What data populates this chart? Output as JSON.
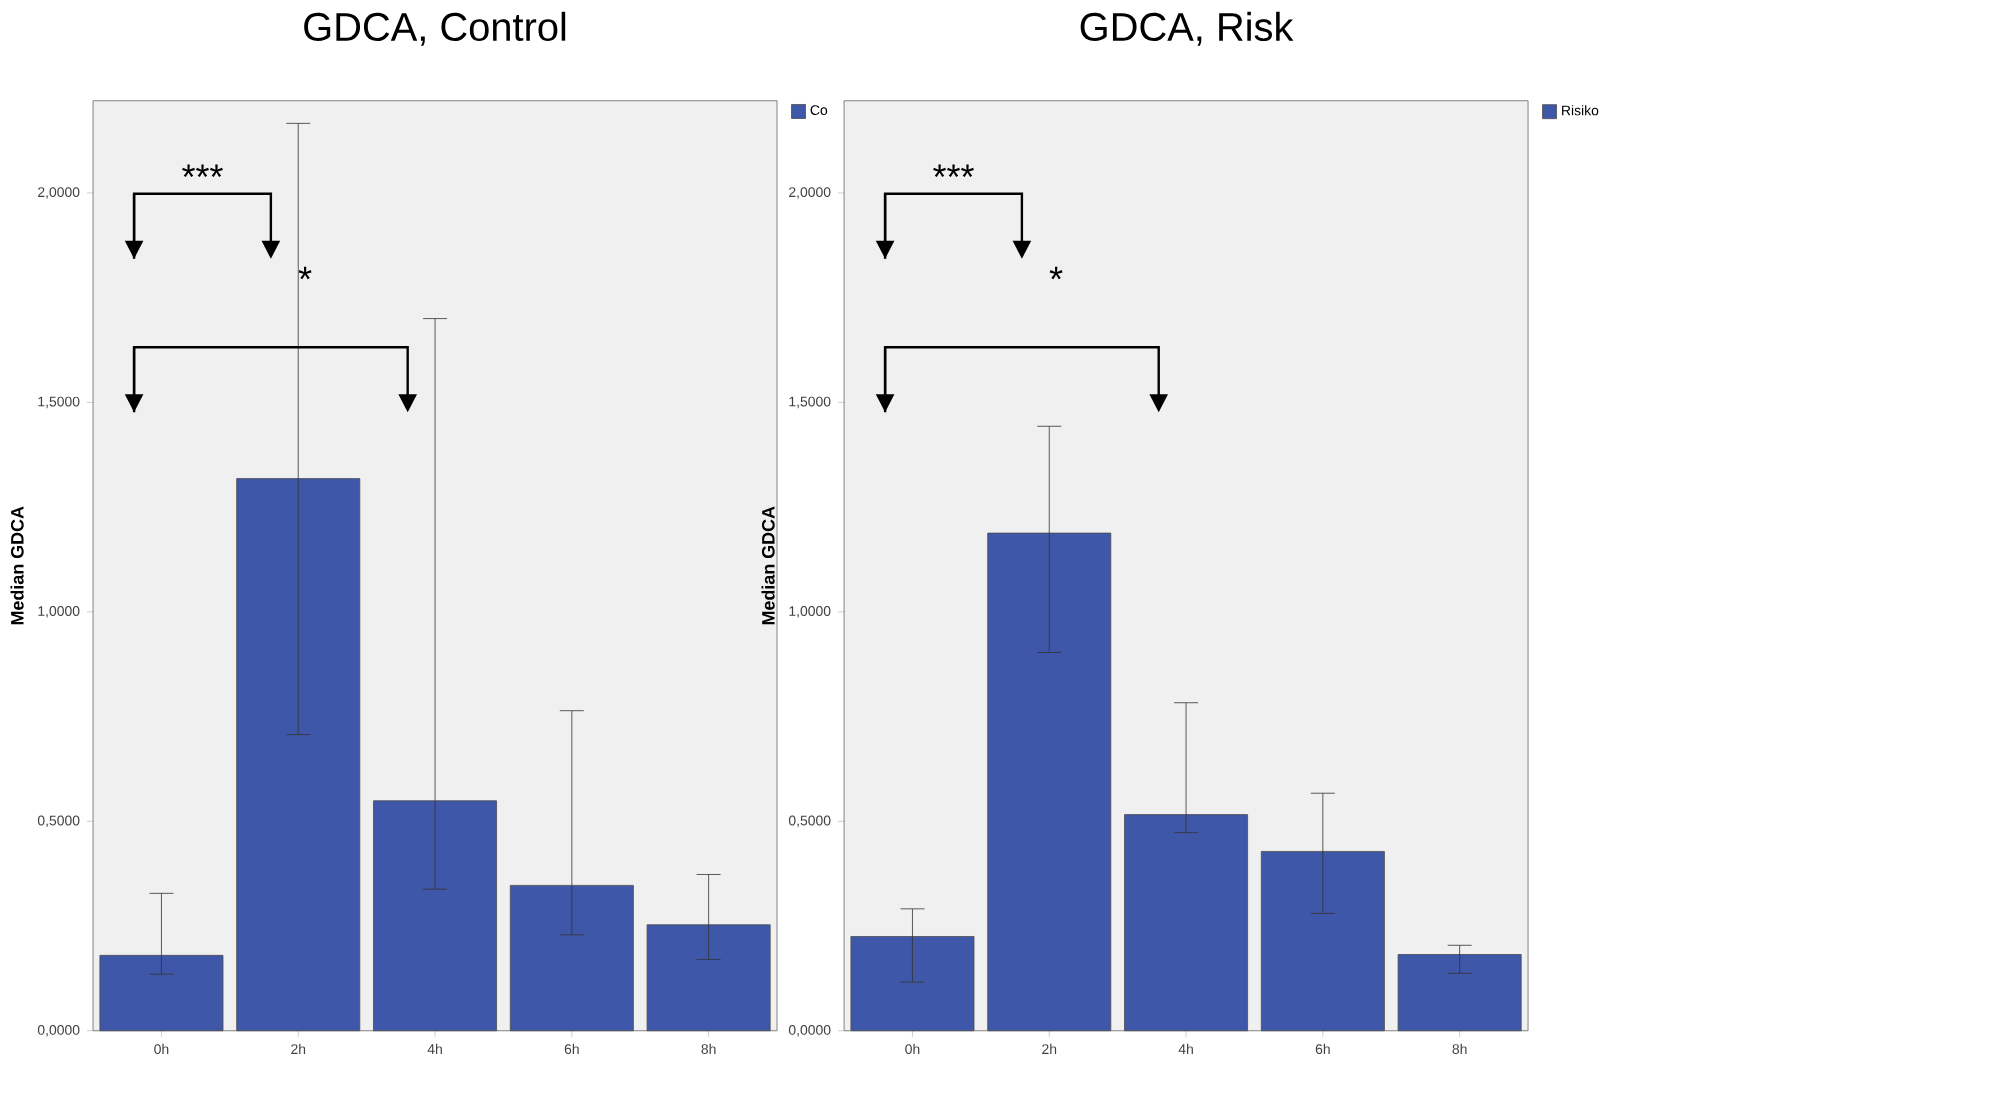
{
  "chart_data": [
    {
      "type": "bar",
      "title": "GDCA, Control",
      "ylabel": "Median GDCA",
      "categories": [
        "0h",
        "2h",
        "4h",
        "6h",
        "8h"
      ],
      "series": [
        {
          "name": "Co",
          "color": "#3f57a8",
          "values": [
            0.18,
            1.318,
            0.549,
            0.347,
            0.253
          ],
          "errors": [
            [
              0.135,
              0.328
            ],
            [
              0.707,
              2.166
            ],
            [
              0.338,
              1.7
            ],
            [
              0.229,
              0.764
            ],
            [
              0.17,
              0.373
            ]
          ]
        }
      ],
      "ylim": [
        0,
        2.22
      ],
      "yticks": [
        {
          "value": 0,
          "label": "0,0000"
        },
        {
          "value": 0.5,
          "label": "0,5000"
        },
        {
          "value": 1,
          "label": "1,0000"
        },
        {
          "value": 1.5,
          "label": "1,5000"
        },
        {
          "value": 2,
          "label": "2,0000"
        }
      ],
      "annotations": [
        "***",
        "*"
      ],
      "legend": "top right",
      "grid": false
    },
    {
      "type": "bar",
      "title": "GDCA, Risk",
      "ylabel": "Median GDCA",
      "categories": [
        "0h",
        "2h",
        "4h",
        "6h",
        "8h"
      ],
      "series": [
        {
          "name": "Risiko",
          "color": "#3f57a8",
          "values": [
            0.225,
            1.188,
            0.516,
            0.428,
            0.182
          ],
          "errors": [
            [
              0.116,
              0.291
            ],
            [
              0.903,
              1.443
            ],
            [
              0.473,
              0.783
            ],
            [
              0.28,
              0.567
            ],
            [
              0.137,
              0.204
            ]
          ]
        }
      ],
      "ylim": [
        0,
        2.22
      ],
      "yticks": [
        {
          "value": 0,
          "label": "0,0000"
        },
        {
          "value": 0.5,
          "label": "0,5000"
        },
        {
          "value": 1,
          "label": "1,0000"
        },
        {
          "value": 1.5,
          "label": "1,5000"
        },
        {
          "value": 2,
          "label": "2,0000"
        }
      ],
      "annotations": [
        "***",
        "*"
      ],
      "legend": "top right",
      "grid": false
    }
  ]
}
